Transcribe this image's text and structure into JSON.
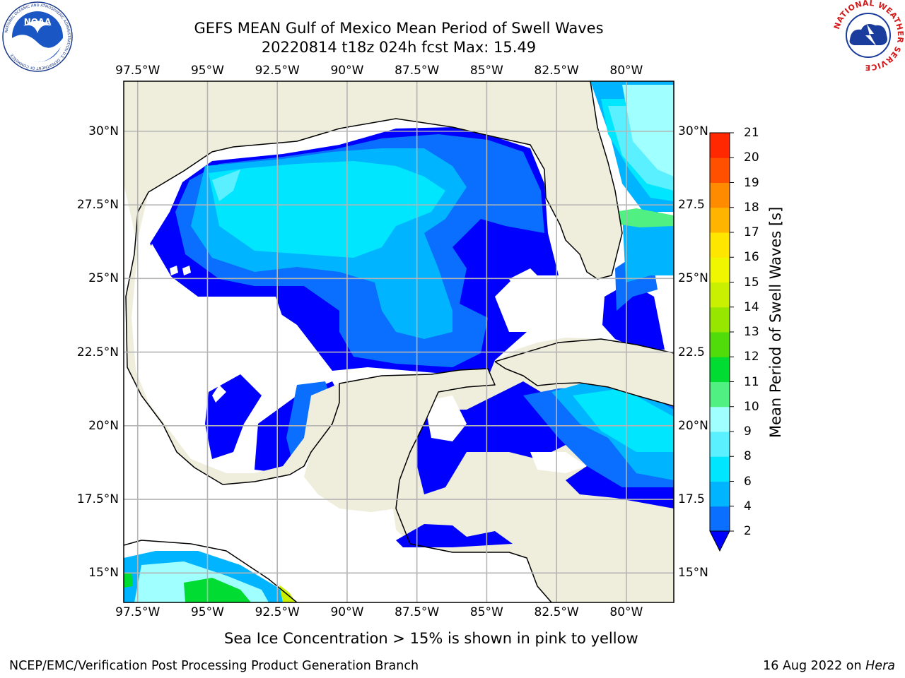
{
  "header": {
    "title_line1": "GEFS MEAN Gulf of Mexico Mean Period of Swell Waves",
    "title_line2": "20220814 t18z 024h fcst   Max: 15.49"
  },
  "logos": {
    "left": {
      "text": "NOAA",
      "ring_text": "NATIONAL OCEANIC AND ATMOSPHERIC ADMINISTRATION  U.S. DEPARTMENT OF COMMERCE"
    },
    "right": {
      "ring_text": "NATIONAL WEATHER SERVICE"
    }
  },
  "map": {
    "lon_ticks": [
      "97.5°W",
      "95°W",
      "92.5°W",
      "90°W",
      "87.5°W",
      "85°W",
      "82.5°W",
      "80°W"
    ],
    "lon_values": [
      -97.5,
      -95,
      -92.5,
      -90,
      -87.5,
      -85,
      -82.5,
      -80
    ],
    "lat_ticks_left": [
      "30°N",
      "27.5°N",
      "25°N",
      "22.5°N",
      "20°N",
      "17.5°N",
      "15°N"
    ],
    "lat_ticks_right": [
      "30°N",
      "27.5",
      "25°N",
      "22.5",
      "20°N",
      "17.5",
      "15°N"
    ],
    "lat_values": [
      30,
      27.5,
      25,
      22.5,
      20,
      17.5,
      15
    ],
    "lon_range": [
      -98,
      -78.3
    ],
    "lat_range": [
      14,
      31.7
    ],
    "colors": {
      "land": "#efeedc",
      "ocean": "#ffffff",
      "grid": "#b4b4b4",
      "coast": "#000000"
    }
  },
  "colorbar": {
    "label": "Mean Period of Swell Waves [s]",
    "tick_labels": [
      "2",
      "4",
      "6",
      "8",
      "9",
      "10",
      "11",
      "12",
      "13",
      "14",
      "15",
      "16",
      "17",
      "18",
      "19",
      "20",
      "21"
    ],
    "colors": [
      "#0a6eff",
      "#00b4ff",
      "#00e6ff",
      "#5af0ff",
      "#a0ffff",
      "#50f082",
      "#00dc32",
      "#50dc0a",
      "#96e600",
      "#c8f000",
      "#f0f500",
      "#ffe600",
      "#ffb400",
      "#ff8c00",
      "#ff5000",
      "#ff2800",
      "#ff0000"
    ],
    "extend_color": "#0000ff"
  },
  "note": "Sea Ice Concentration > 15% is shown in pink to yellow",
  "footer": {
    "left": "NCEP/EMC/Verification Post Processing Product Generation Branch",
    "date": "16 Aug 2022 on ",
    "machine": "Hera"
  }
}
